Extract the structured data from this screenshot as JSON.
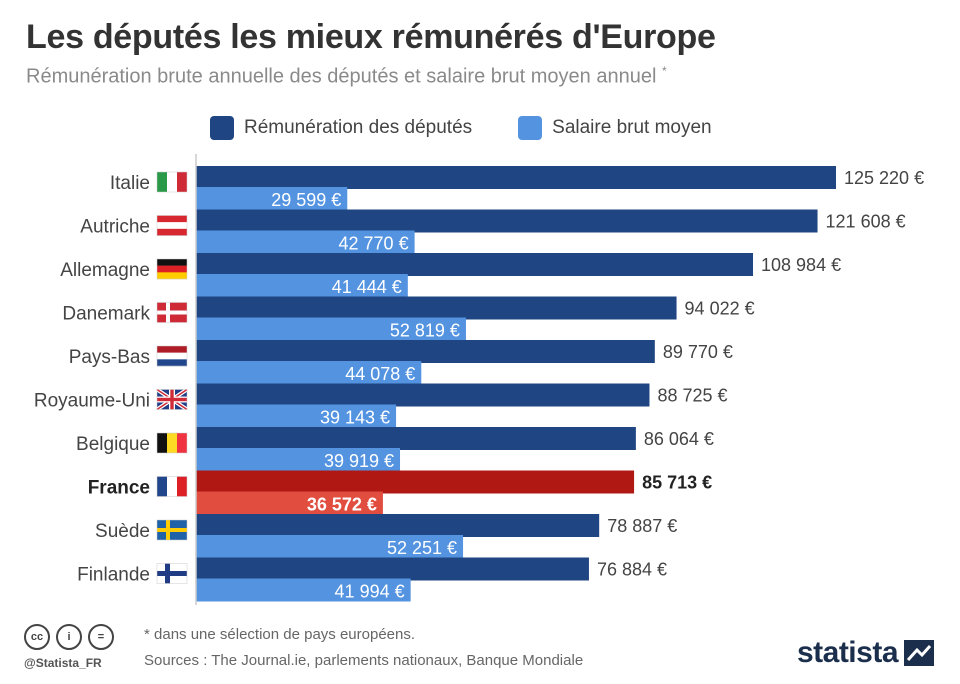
{
  "header": {
    "title": "Les députés les mieux rémunérés d'Europe",
    "subtitle": "Rémunération brute annuelle des députés et salaire brut moyen annuel",
    "subtitle_mark": "*"
  },
  "colors": {
    "deputy": "#1f4582",
    "salary": "#5393e0",
    "deputy_highlight": "#b01813",
    "salary_highlight": "#e14d3f",
    "axis": "#cccccc"
  },
  "chart_data": {
    "type": "bar",
    "orientation": "horizontal",
    "categories": [
      "Italie",
      "Autriche",
      "Allemagne",
      "Danemark",
      "Pays-Bas",
      "Royaume-Uni",
      "Belgique",
      "France",
      "Suède",
      "Finlande"
    ],
    "highlight": "France",
    "xlim": [
      0,
      125220
    ],
    "series": [
      {
        "name": "Rémunération des députés",
        "values": [
          125220,
          121608,
          108984,
          94022,
          89770,
          88725,
          86064,
          85713,
          78887,
          76884
        ],
        "labels": [
          "125 220 €",
          "121 608 €",
          "108 984 €",
          "94 022 €",
          "89 770 €",
          "88 725 €",
          "86 064 €",
          "85 713 €",
          "78 887 €",
          "76 884 €"
        ]
      },
      {
        "name": "Salaire brut moyen",
        "values": [
          29599,
          42770,
          41444,
          52819,
          44078,
          39143,
          39919,
          36572,
          52251,
          41994
        ],
        "labels": [
          "29 599 €",
          "42 770 €",
          "41 444 €",
          "52 819 €",
          "44 078 €",
          "39 143 €",
          "39 919 €",
          "36 572 €",
          "52 251 €",
          "41 994 €"
        ]
      }
    ],
    "flags": [
      "flag-italy",
      "flag-austria",
      "flag-germany",
      "flag-denmark",
      "flag-netherlands",
      "flag-uk",
      "flag-belgium",
      "flag-france",
      "flag-sweden",
      "flag-finland"
    ],
    "legend_position": "top"
  },
  "footer": {
    "note": "* dans une sélection de pays européens.",
    "sources": "Sources : The Journal.ie, parlements nationaux, Banque Mondiale",
    "handle": "@Statista_FR",
    "logo": "statista",
    "icons": [
      "cc-icon",
      "by-icon",
      "nd-icon"
    ],
    "icon_glyphs": [
      "cc",
      "i",
      "="
    ]
  }
}
